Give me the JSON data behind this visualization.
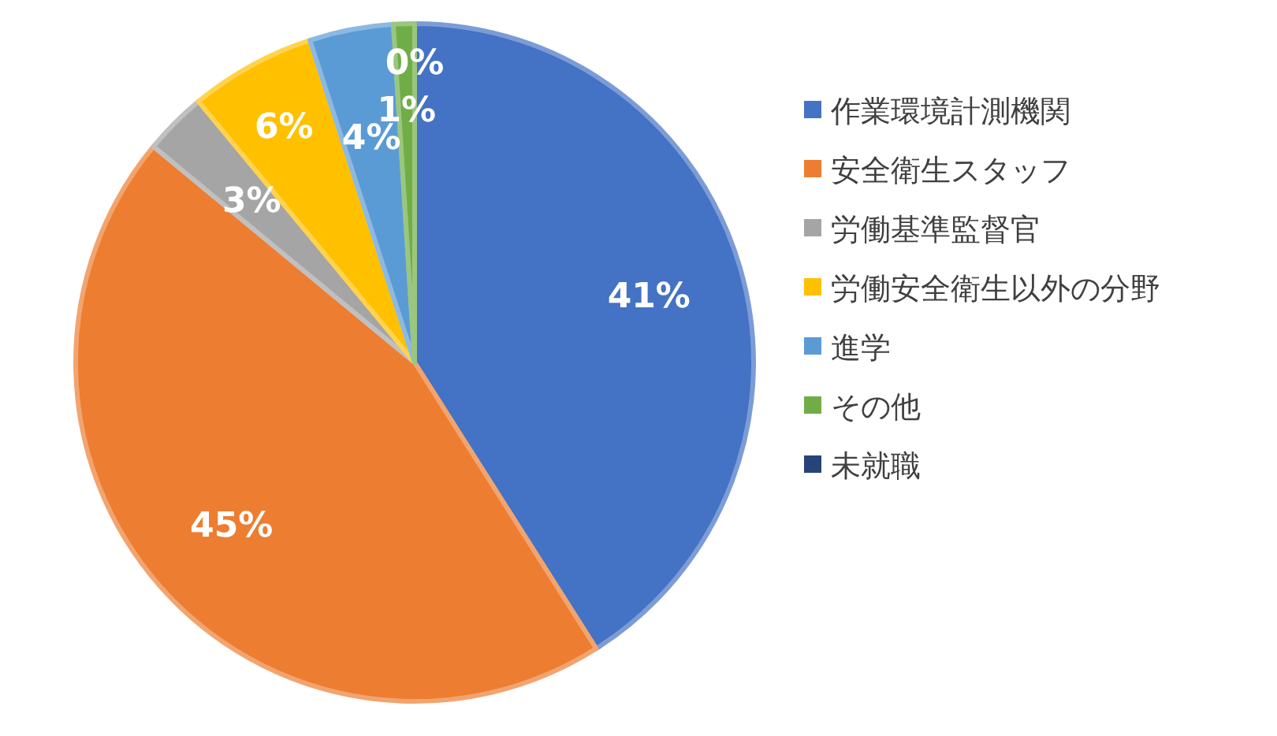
{
  "chart_data": {
    "type": "pie",
    "categories": [
      "作業環境計測機関",
      "安全衛生スタッフ",
      "労働基準監督官",
      "労働安全衛生以外の分野",
      "進学",
      "その他",
      "未就職"
    ],
    "values": [
      41,
      45,
      3,
      6,
      4,
      1,
      0
    ],
    "colors": [
      "#4472c4",
      "#ed7d31",
      "#a5a5a5",
      "#ffc000",
      "#5b9bd5",
      "#70ad47",
      "#264478"
    ],
    "value_labels": [
      "41%",
      "45%",
      "3%",
      "6%",
      "4%",
      "1%",
      "0%"
    ],
    "legend": "right"
  }
}
